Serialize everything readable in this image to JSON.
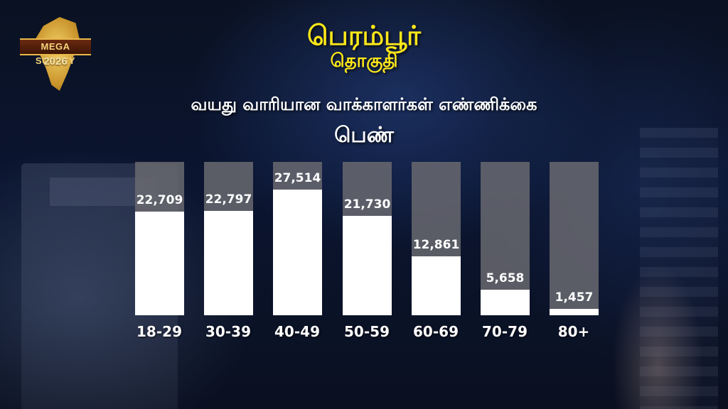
{
  "logo": {
    "banner": "MEGA SURVEY",
    "year": "2026"
  },
  "header": {
    "constituency": "பெரம்பூர்",
    "constituency_suffix": "தொகுதி",
    "chart_title": "வயது வாரியான வாக்காளர்கள் எண்ணிக்கை",
    "gender": "பெண்"
  },
  "colors": {
    "title_yellow": "#ffe81a",
    "bar_fill": "#ffffff",
    "bar_track": "#69696f",
    "background": "#0b1530"
  },
  "chart_data": {
    "type": "bar",
    "title": "வயது வாரியான வாக்காளர்கள் எண்ணிக்கை",
    "subtitle": "பெண்",
    "xlabel": "",
    "ylabel": "",
    "categories": [
      "18-29",
      "30-39",
      "40-49",
      "50-59",
      "60-69",
      "70-79",
      "80+"
    ],
    "values": [
      22709,
      22797,
      27514,
      21730,
      12861,
      5658,
      1457
    ],
    "value_labels": [
      "22,709",
      "22,797",
      "27,514",
      "21,730",
      "12,861",
      "5,658",
      "1,457"
    ],
    "ylim": [
      0,
      33600
    ],
    "grid": false,
    "legend": "none"
  }
}
